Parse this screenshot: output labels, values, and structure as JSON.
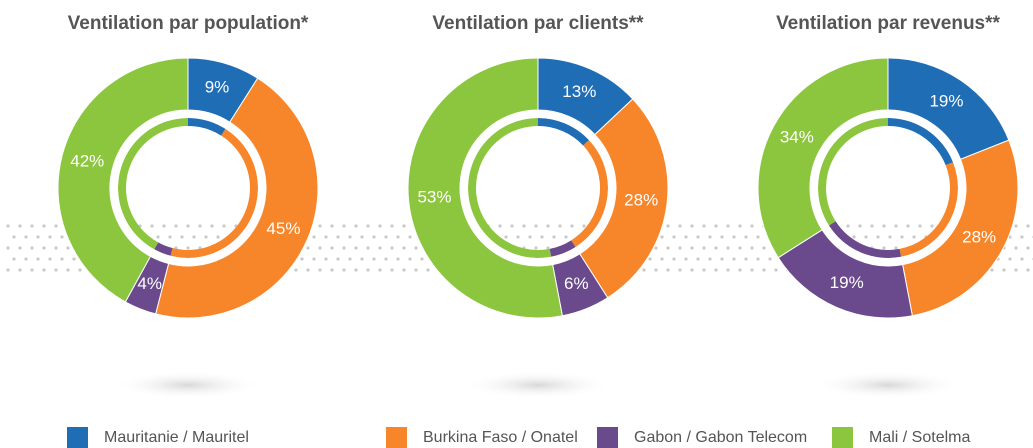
{
  "chart_data": [
    {
      "type": "pie",
      "title": "Ventilation par population*",
      "values": [
        9,
        45,
        4,
        42
      ],
      "value_labels": [
        "9%",
        "45%",
        "4%",
        "42%"
      ]
    },
    {
      "type": "pie",
      "title": "Ventilation par clients**",
      "values": [
        13,
        28,
        6,
        53
      ],
      "value_labels": [
        "13%",
        "28%",
        "6%",
        "53%"
      ]
    },
    {
      "type": "pie",
      "title": "Ventilation par revenus**",
      "values": [
        19,
        28,
        19,
        34
      ],
      "value_labels": [
        "19%",
        "28%",
        "19%",
        "34%"
      ]
    }
  ],
  "legend": [
    {
      "name": "Mauritanie / Mauritel",
      "color": "#1f6db5"
    },
    {
      "name": "Burkina Faso / Onatel",
      "color": "#f7862a"
    },
    {
      "name": "Gabon / Gabon Telecom",
      "color": "#6a4a8c"
    },
    {
      "name": "Mali / Sotelma",
      "color": "#8cc63f"
    }
  ]
}
